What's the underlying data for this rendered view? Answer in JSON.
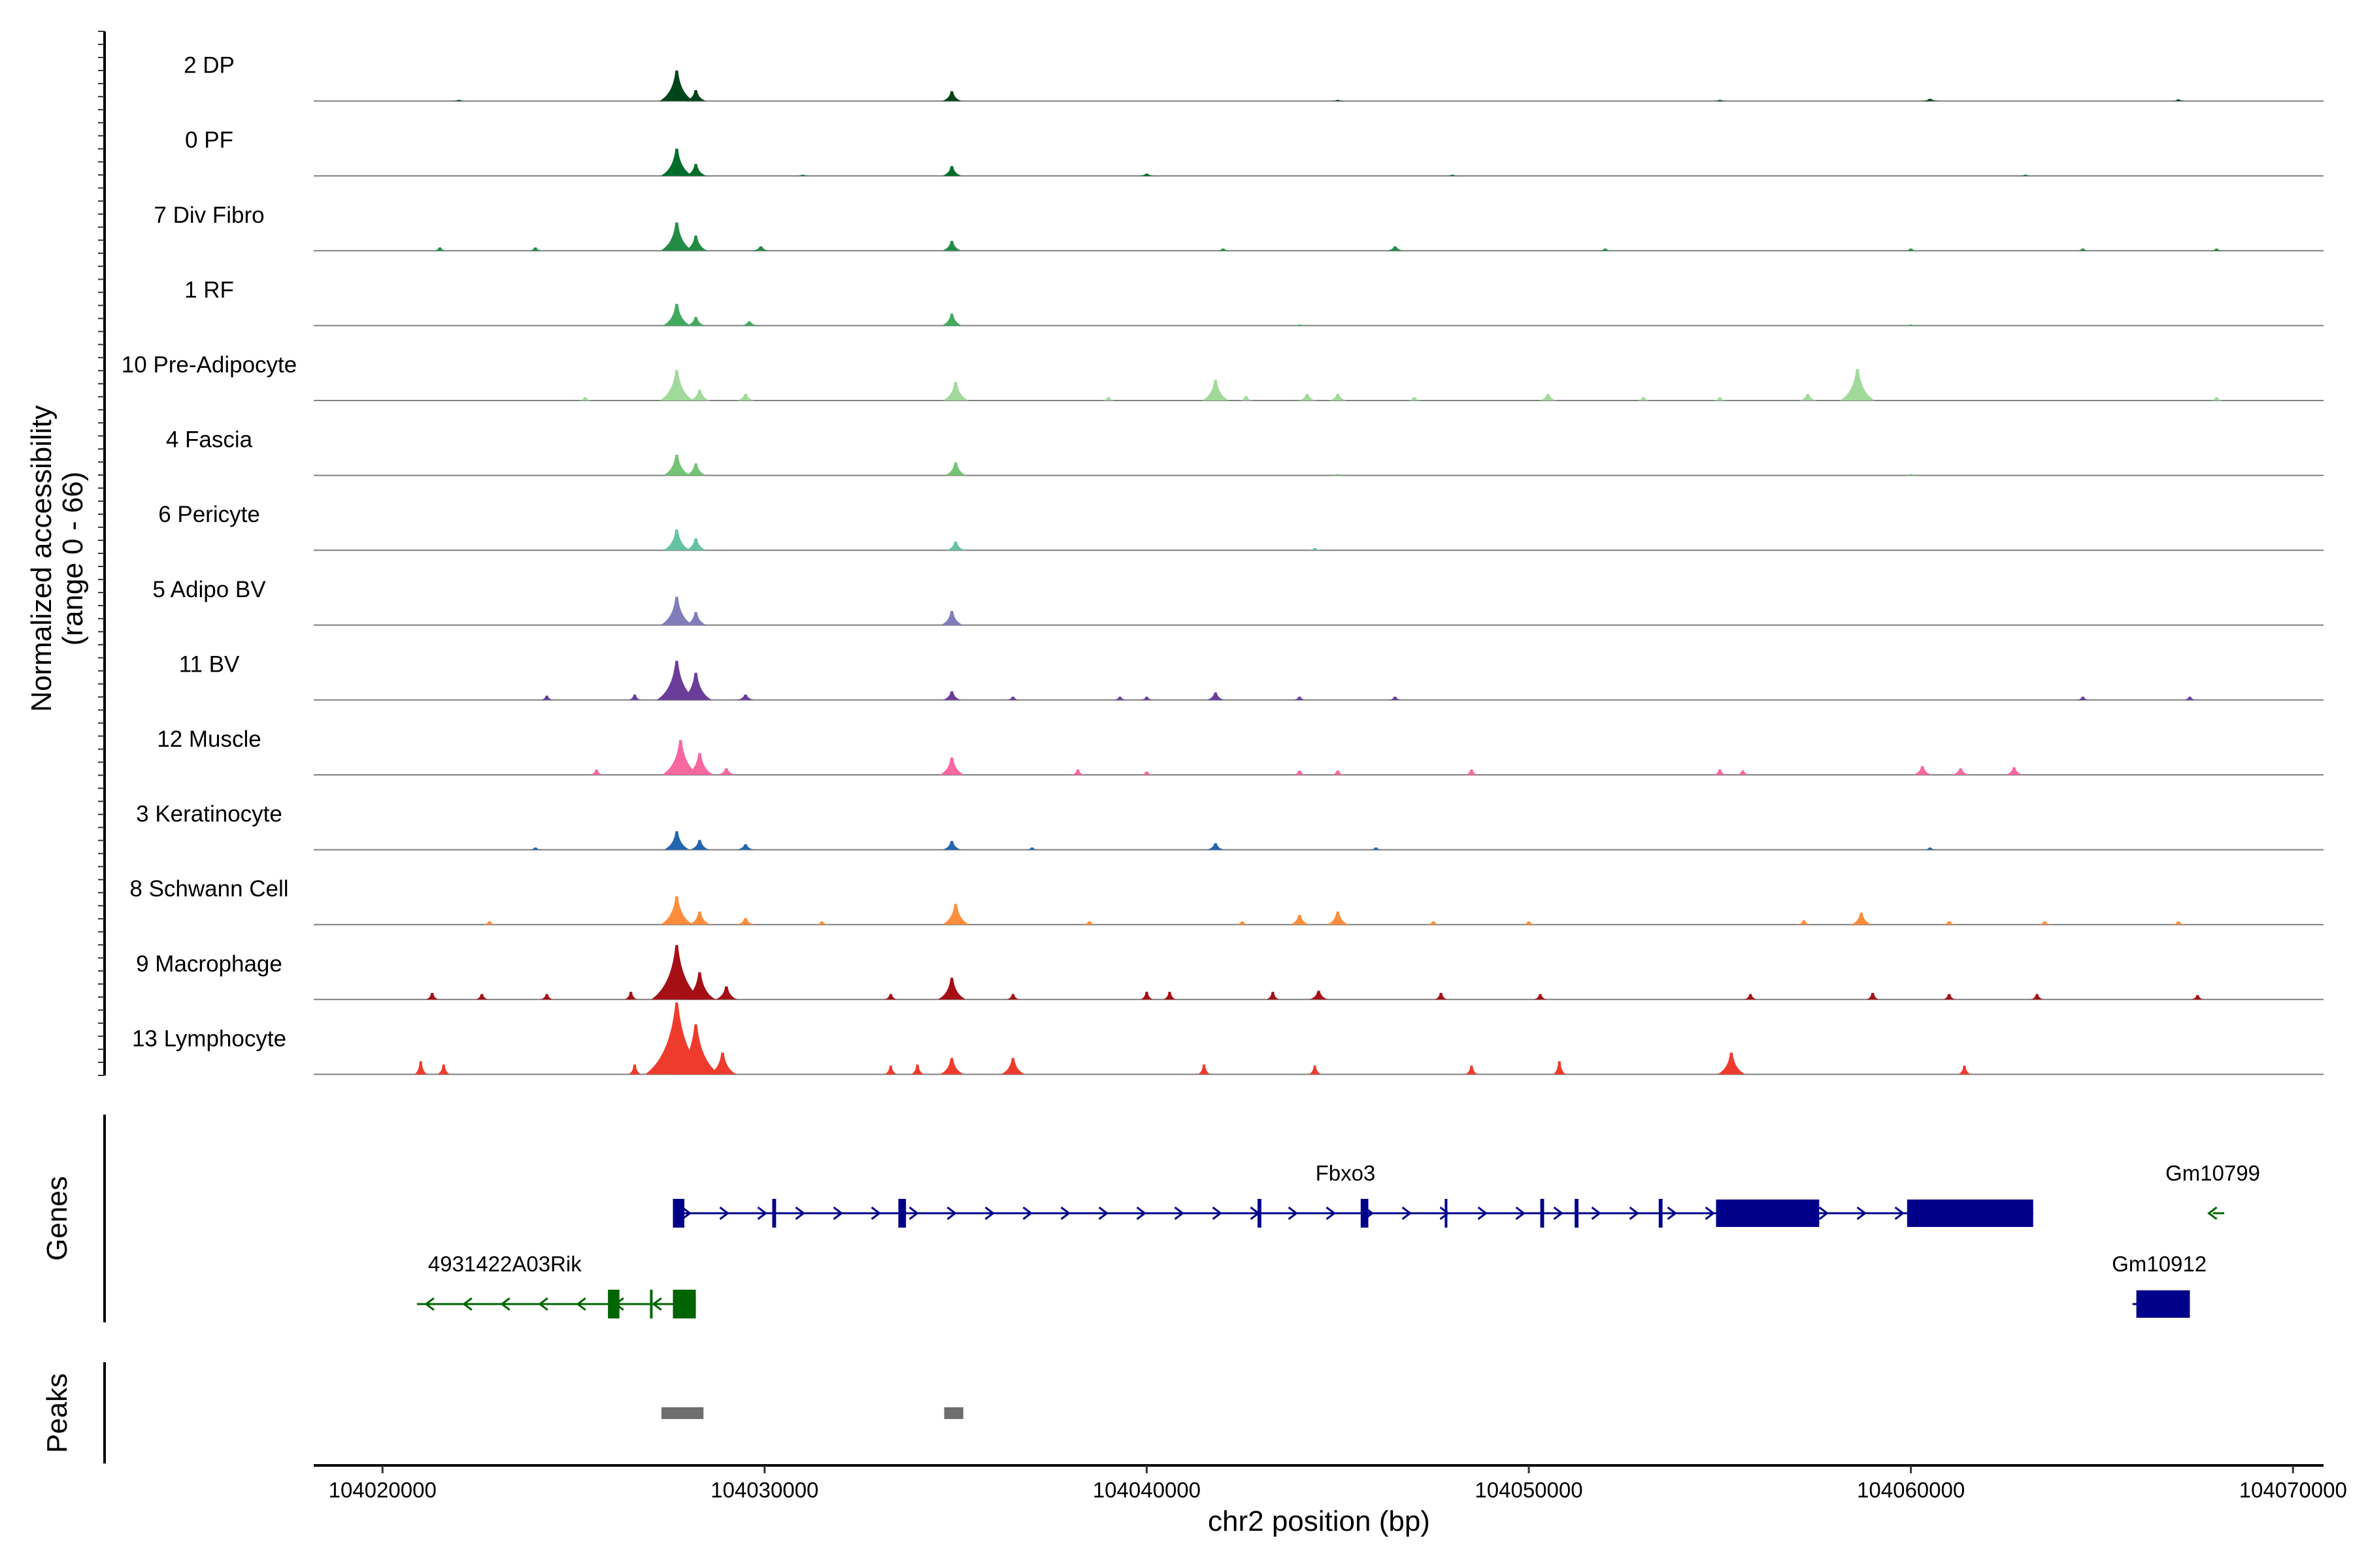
{
  "chart_data": {
    "type": "area",
    "x": {
      "label": "chr2 position (bp)",
      "range": [
        104018200,
        104070800
      ],
      "ticks": [
        104020000,
        104030000,
        104040000,
        104050000,
        104060000,
        104070000
      ],
      "tick_labels": [
        "104020000",
        "104030000",
        "104040000",
        "104050000",
        "104060000",
        "104070000"
      ]
    },
    "y_label_line1": "Normalized accessibility",
    "y_label_line2": "(range 0 - 66)",
    "ylim": [
      0,
      66
    ],
    "tracks": [
      {
        "name": "2 DP",
        "color": "#00441b",
        "peaks": [
          [
            104027700,
            28
          ],
          [
            104028200,
            10
          ],
          [
            104034900,
            9
          ],
          [
            104060500,
            2
          ]
        ],
        "minor": [
          [
            104022000,
            1
          ],
          [
            104045000,
            1
          ],
          [
            104055000,
            1
          ],
          [
            104067000,
            1.5
          ]
        ]
      },
      {
        "name": "0 PF",
        "color": "#006d2c",
        "peaks": [
          [
            104027700,
            25
          ],
          [
            104028200,
            11
          ],
          [
            104034900,
            9
          ],
          [
            104040000,
            2
          ]
        ],
        "minor": [
          [
            104031000,
            1
          ],
          [
            104048000,
            1
          ],
          [
            104063000,
            1
          ]
        ]
      },
      {
        "name": "7 Div Fibro",
        "color": "#238b45",
        "peaks": [
          [
            104027700,
            26
          ],
          [
            104028200,
            14
          ],
          [
            104029900,
            4
          ],
          [
            104034900,
            9
          ],
          [
            104046500,
            4
          ]
        ],
        "minor": [
          [
            104021500,
            3
          ],
          [
            104024000,
            3
          ],
          [
            104042000,
            2
          ],
          [
            104052000,
            2
          ],
          [
            104060000,
            2
          ],
          [
            104064500,
            2
          ],
          [
            104068000,
            2
          ]
        ]
      },
      {
        "name": "1 RF",
        "color": "#41ab5d",
        "peaks": [
          [
            104027700,
            20
          ],
          [
            104028200,
            8
          ],
          [
            104029600,
            4
          ],
          [
            104034900,
            11
          ]
        ],
        "minor": [
          [
            104044000,
            1
          ],
          [
            104060000,
            1
          ]
        ]
      },
      {
        "name": "10 Pre-Adipocyte",
        "color": "#a1d99b",
        "peaks": [
          [
            104027700,
            28
          ],
          [
            104028300,
            10
          ],
          [
            104029500,
            6
          ],
          [
            104035000,
            17
          ],
          [
            104041800,
            19
          ],
          [
            104044200,
            6
          ],
          [
            104045000,
            6
          ],
          [
            104050500,
            6
          ],
          [
            104058600,
            29
          ],
          [
            104057300,
            6
          ]
        ],
        "minor": [
          [
            104025300,
            3
          ],
          [
            104039000,
            3
          ],
          [
            104042600,
            4
          ],
          [
            104047000,
            3
          ],
          [
            104053000,
            3
          ],
          [
            104055000,
            3
          ],
          [
            104068000,
            3
          ]
        ]
      },
      {
        "name": "4 Fascia",
        "color": "#74c476",
        "peaks": [
          [
            104027700,
            19
          ],
          [
            104028200,
            11
          ],
          [
            104035000,
            12
          ]
        ],
        "minor": [
          [
            104045000,
            1
          ],
          [
            104060000,
            1
          ]
        ]
      },
      {
        "name": "6 Pericyte",
        "color": "#66c2a4",
        "peaks": [
          [
            104027700,
            19
          ],
          [
            104028200,
            11
          ],
          [
            104035000,
            8
          ]
        ],
        "minor": [
          [
            104044400,
            2
          ]
        ]
      },
      {
        "name": "5 Adipo BV",
        "color": "#807dba",
        "peaks": [
          [
            104027700,
            26
          ],
          [
            104028200,
            12
          ],
          [
            104034900,
            13
          ]
        ],
        "minor": []
      },
      {
        "name": "11 BV",
        "color": "#6a3d9a",
        "peaks": [
          [
            104027700,
            36
          ],
          [
            104028200,
            25
          ],
          [
            104029500,
            5
          ],
          [
            104034900,
            8
          ],
          [
            104041800,
            7
          ]
        ],
        "minor": [
          [
            104024300,
            4
          ],
          [
            104026600,
            5
          ],
          [
            104036500,
            3
          ],
          [
            104039300,
            3
          ],
          [
            104040000,
            3
          ],
          [
            104044000,
            3
          ],
          [
            104046500,
            3
          ],
          [
            104064500,
            3
          ],
          [
            104067300,
            3
          ]
        ]
      },
      {
        "name": "12 Muscle",
        "color": "#f768a1",
        "peaks": [
          [
            104027800,
            32
          ],
          [
            104028300,
            20
          ],
          [
            104029000,
            6
          ],
          [
            104034900,
            16
          ],
          [
            104060300,
            8
          ],
          [
            104061300,
            6
          ],
          [
            104062700,
            7
          ]
        ],
        "minor": [
          [
            104025600,
            5
          ],
          [
            104038200,
            5
          ],
          [
            104040000,
            3
          ],
          [
            104044000,
            4
          ],
          [
            104045000,
            4
          ],
          [
            104048500,
            5
          ],
          [
            104055000,
            5
          ],
          [
            104055600,
            4
          ]
        ]
      },
      {
        "name": "3 Keratinocyte",
        "color": "#2166ac",
        "peaks": [
          [
            104027700,
            17
          ],
          [
            104028300,
            9
          ],
          [
            104029500,
            5
          ],
          [
            104034900,
            8
          ],
          [
            104041800,
            6
          ]
        ],
        "minor": [
          [
            104024000,
            2
          ],
          [
            104037000,
            2
          ],
          [
            104046000,
            2
          ],
          [
            104060500,
            2
          ]
        ]
      },
      {
        "name": "8 Schwann Cell",
        "color": "#fd8d3c",
        "peaks": [
          [
            104027700,
            26
          ],
          [
            104028300,
            12
          ],
          [
            104029500,
            6
          ],
          [
            104035000,
            19
          ],
          [
            104044000,
            9
          ],
          [
            104045000,
            12
          ],
          [
            104058700,
            11
          ]
        ],
        "minor": [
          [
            104022800,
            3
          ],
          [
            104031500,
            3
          ],
          [
            104038500,
            3
          ],
          [
            104042500,
            3
          ],
          [
            104047500,
            3
          ],
          [
            104050000,
            3
          ],
          [
            104057200,
            4
          ],
          [
            104061000,
            3
          ],
          [
            104063500,
            3
          ],
          [
            104067000,
            3
          ]
        ]
      },
      {
        "name": "9 Macrophage",
        "color": "#a50f15",
        "peaks": [
          [
            104027700,
            50
          ],
          [
            104028300,
            25
          ],
          [
            104029000,
            12
          ],
          [
            104034900,
            20
          ],
          [
            104044500,
            8
          ]
        ],
        "minor": [
          [
            104021300,
            6
          ],
          [
            104022600,
            5
          ],
          [
            104024300,
            5
          ],
          [
            104026500,
            7
          ],
          [
            104033300,
            5
          ],
          [
            104036500,
            5
          ],
          [
            104040000,
            7
          ],
          [
            104040600,
            7
          ],
          [
            104043300,
            7
          ],
          [
            104047700,
            6
          ],
          [
            104050300,
            5
          ],
          [
            104055800,
            5
          ],
          [
            104059000,
            6
          ],
          [
            104061000,
            5
          ],
          [
            104063300,
            5
          ],
          [
            104067500,
            4
          ]
        ]
      },
      {
        "name": "13 Lymphocyte",
        "color": "#ef3b2c",
        "peaks": [
          [
            104027700,
            66
          ],
          [
            104028200,
            46
          ],
          [
            104028900,
            20
          ],
          [
            104034900,
            15
          ],
          [
            104036500,
            15
          ],
          [
            104055300,
            20
          ]
        ],
        "minor": [
          [
            104021000,
            12
          ],
          [
            104021600,
            9
          ],
          [
            104026600,
            9
          ],
          [
            104033300,
            8
          ],
          [
            104034000,
            9
          ],
          [
            104041500,
            9
          ],
          [
            104044400,
            8
          ],
          [
            104048500,
            8
          ],
          [
            104050800,
            12
          ],
          [
            104061400,
            8
          ]
        ]
      }
    ],
    "genes_label": "Genes",
    "genes": [
      {
        "name": "Fbxo3",
        "strand": "+",
        "start": 104027600,
        "end": 104063200,
        "row": 1,
        "color": "#00008b",
        "exons": [
          [
            104027600,
            104027900
          ],
          [
            104030200,
            104030300
          ],
          [
            104033500,
            104033700
          ],
          [
            104042900,
            104043000
          ],
          [
            104045600,
            104045800
          ],
          [
            104047800,
            104047850
          ],
          [
            104050300,
            104050400
          ],
          [
            104051200,
            104051300
          ],
          [
            104053400,
            104053500
          ],
          [
            104054900,
            104057600
          ],
          [
            104059900,
            104063200
          ]
        ],
        "label_x": 104045200
      },
      {
        "name": "Gm10799",
        "strand": "-",
        "start": 104067900,
        "end": 104068200,
        "row": 1,
        "color": "#006400",
        "exons": [],
        "label_x": 104067900
      },
      {
        "name": "4931422A03Rik",
        "strand": "-",
        "start": 104020900,
        "end": 104028200,
        "row": 2,
        "color": "#006400",
        "exons": [
          [
            104025900,
            104026200
          ],
          [
            104027000,
            104027050
          ],
          [
            104027600,
            104028200
          ]
        ],
        "label_x": 104023200
      },
      {
        "name": "Gm10912",
        "strand": "+",
        "start": 104065800,
        "end": 104067300,
        "row": 2,
        "color": "#00008b",
        "exons": [
          [
            104065900,
            104067300
          ]
        ],
        "label_x": 104066500
      }
    ],
    "peaks_label": "Peaks",
    "peak_regions": [
      [
        104027300,
        104028400
      ],
      [
        104034700,
        104035200
      ]
    ],
    "peak_color": "#6e6e6e"
  }
}
